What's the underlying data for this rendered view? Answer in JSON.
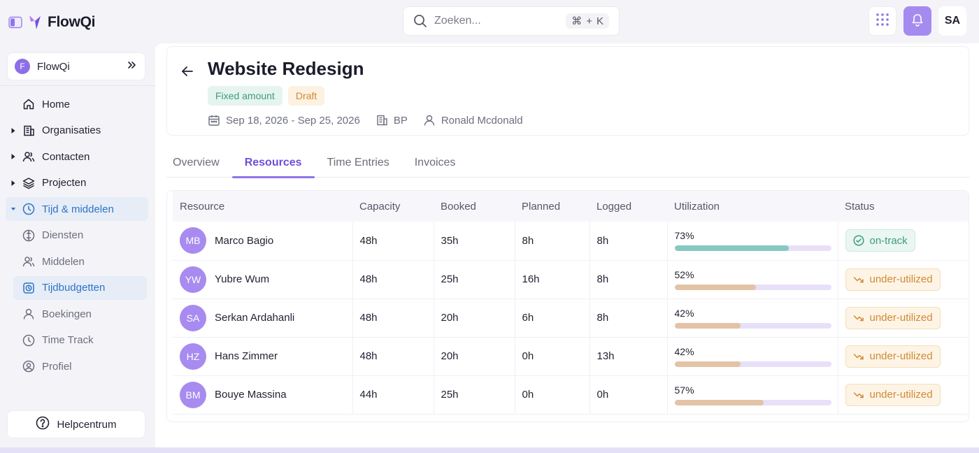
{
  "app": {
    "brand_name": "FlowQi",
    "search_placeholder": "Zoeken...",
    "shortcut_key1": "⌘",
    "shortcut_plus": "+",
    "shortcut_key2": "K",
    "user_initials": "SA"
  },
  "sidebar": {
    "org_initial": "F",
    "org_name": "FlowQi",
    "items": [
      {
        "label": "Home",
        "icon": "home-icon",
        "caret": "",
        "active": false,
        "sub": false
      },
      {
        "label": "Organisaties",
        "icon": "building-icon",
        "caret": "right",
        "active": false,
        "sub": false
      },
      {
        "label": "Contacten",
        "icon": "users-icon",
        "caret": "right",
        "active": false,
        "sub": false
      },
      {
        "label": "Projecten",
        "icon": "layers-icon",
        "caret": "right",
        "active": false,
        "sub": false
      },
      {
        "label": "Tijd & middelen",
        "icon": "clock-icon",
        "caret": "down",
        "active": true,
        "sub": false
      },
      {
        "label": "Diensten",
        "icon": "services-icon",
        "caret": "",
        "active": false,
        "sub": true
      },
      {
        "label": "Middelen",
        "icon": "users-icon",
        "caret": "",
        "active": false,
        "sub": true
      },
      {
        "label": "Tijdbudgetten",
        "icon": "timer-icon",
        "caret": "",
        "active": true,
        "sub": true
      },
      {
        "label": "Boekingen",
        "icon": "user-icon",
        "caret": "",
        "active": false,
        "sub": true
      },
      {
        "label": "Time Track",
        "icon": "clock-icon",
        "caret": "",
        "active": false,
        "sub": true
      },
      {
        "label": "Profiel",
        "icon": "profile-icon",
        "caret": "",
        "active": false,
        "sub": true
      }
    ],
    "help_label": "Helpcentrum"
  },
  "project": {
    "title": "Website Redesign",
    "tag_type": "Fixed amount",
    "tag_status": "Draft",
    "date_range": "Sep 18, 2026 - Sep 25, 2026",
    "org_code": "BP",
    "owner": "Ronald Mcdonald"
  },
  "tabs": [
    {
      "label": "Overview",
      "active": false
    },
    {
      "label": "Resources",
      "active": true
    },
    {
      "label": "Time Entries",
      "active": false
    },
    {
      "label": "Invoices",
      "active": false
    }
  ],
  "table": {
    "headers": [
      "Resource",
      "Capacity",
      "Booked",
      "Planned",
      "Logged",
      "Utilization",
      "Status"
    ],
    "rows": [
      {
        "initials": "MB",
        "name": "Marco Bagio",
        "capacity": "48h",
        "booked": "35h",
        "planned": "8h",
        "logged": "8h",
        "utilization": "73%",
        "util_value": 73,
        "status": "on-track"
      },
      {
        "initials": "YW",
        "name": "Yubre Wum",
        "capacity": "48h",
        "booked": "25h",
        "planned": "16h",
        "logged": "8h",
        "utilization": "52%",
        "util_value": 52,
        "status": "under-utilized"
      },
      {
        "initials": "SA",
        "name": "Serkan Ardahanli",
        "capacity": "48h",
        "booked": "20h",
        "planned": "6h",
        "logged": "8h",
        "utilization": "42%",
        "util_value": 42,
        "status": "under-utilized"
      },
      {
        "initials": "HZ",
        "name": "Hans Zimmer",
        "capacity": "48h",
        "booked": "20h",
        "planned": "0h",
        "logged": "13h",
        "utilization": "42%",
        "util_value": 42,
        "status": "under-utilized"
      },
      {
        "initials": "BM",
        "name": "Bouye Massina",
        "capacity": "44h",
        "booked": "25h",
        "planned": "0h",
        "logged": "0h",
        "utilization": "57%",
        "util_value": 57,
        "status": "under-utilized"
      }
    ]
  },
  "colors": {
    "accent": "#8f74ea",
    "on_track_fill": "#86c9c0",
    "under_fill": "#e3c3a5",
    "bar_track": "#e8e0f9"
  }
}
